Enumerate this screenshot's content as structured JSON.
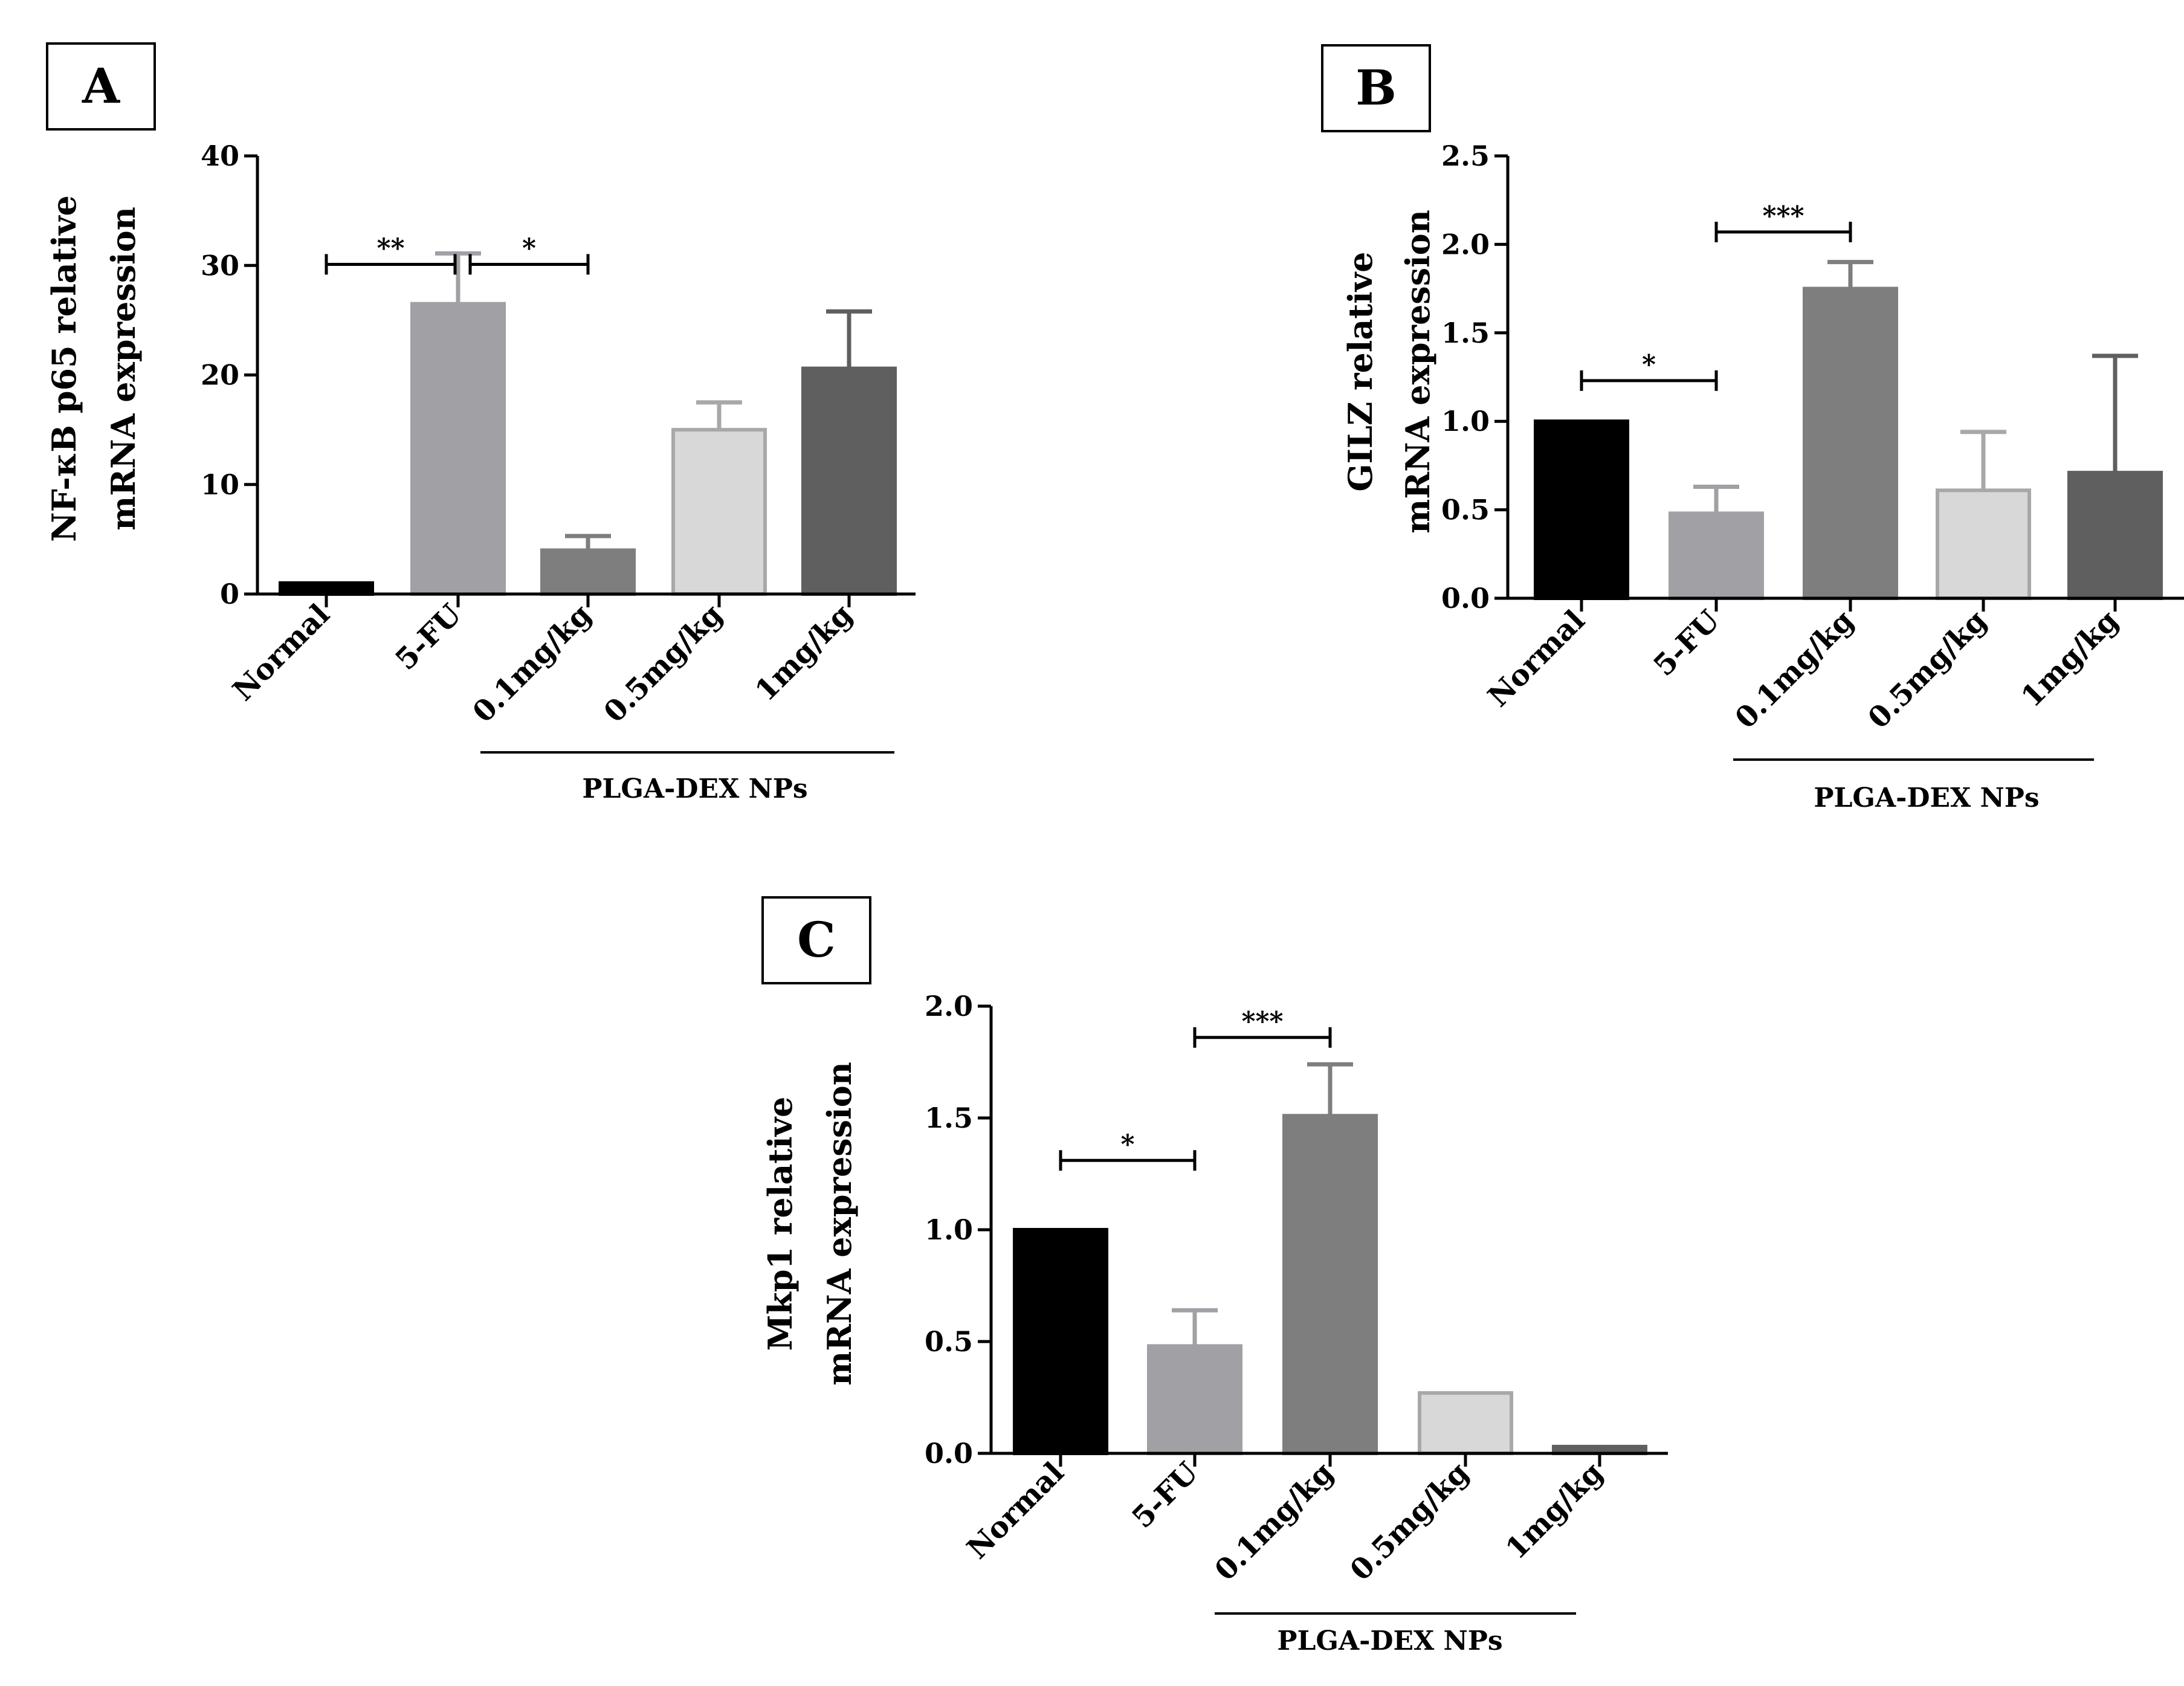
{
  "chart_data": [
    {
      "panel": "A",
      "type": "bar",
      "title": "",
      "ylabel_line1": "NF-κB p65 relative",
      "ylabel_line2": "mRNA expression",
      "xlabel": "",
      "categories": [
        "Normal",
        "5-FU",
        "0.1mg/kg",
        "0.5mg/kg",
        "1mg/kg"
      ],
      "values": [
        1,
        26.5,
        4,
        15,
        20.6
      ],
      "errors": [
        0,
        4.6,
        1.3,
        2.5,
        5.2
      ],
      "ylim": [
        0,
        40
      ],
      "yticks": [
        0,
        10,
        20,
        30,
        40
      ],
      "ytick_labels": [
        "0",
        "10",
        "20",
        "30",
        "40"
      ],
      "group_label": "PLGA-DEX NPs",
      "group_range": [
        2,
        4
      ],
      "significance": [
        {
          "from": 0,
          "to": 1,
          "label": "**",
          "y": 30.1
        },
        {
          "from": 1,
          "to": 2,
          "label": "*",
          "y": 30.1
        }
      ]
    },
    {
      "panel": "B",
      "type": "bar",
      "title": "",
      "ylabel_line1": "GILZ relative",
      "ylabel_line2": "mRNA expression",
      "xlabel": "",
      "categories": [
        "Normal",
        "5-FU",
        "0.1mg/kg",
        "0.5mg/kg",
        "1mg/kg"
      ],
      "values": [
        1.0,
        0.48,
        1.75,
        0.61,
        0.71
      ],
      "errors": [
        0,
        0.15,
        0.15,
        0.33,
        0.66
      ],
      "ylim": [
        0,
        2.5
      ],
      "yticks": [
        0,
        0.5,
        1.0,
        1.5,
        2.0,
        2.5
      ],
      "ytick_labels": [
        "0.0",
        "0.5",
        "1.0",
        "1.5",
        "2.0",
        "2.5"
      ],
      "group_label": "PLGA-DEX NPs",
      "group_range": [
        2,
        4
      ],
      "significance": [
        {
          "from": 0,
          "to": 1,
          "label": "*",
          "y": 1.23
        },
        {
          "from": 1,
          "to": 2,
          "label": "***",
          "y": 2.07
        }
      ]
    },
    {
      "panel": "C",
      "type": "bar",
      "title": "",
      "ylabel_line1": "Mkp1 relative",
      "ylabel_line2": "mRNA expression",
      "xlabel": "",
      "categories": [
        "Normal",
        "5-FU",
        "0.1mg/kg",
        "0.5mg/kg",
        "1mg/kg"
      ],
      "values": [
        1.0,
        0.48,
        1.51,
        0.27,
        0.03
      ],
      "errors": [
        0,
        0.16,
        0.23,
        0,
        0
      ],
      "ylim": [
        0,
        2.0
      ],
      "yticks": [
        0,
        0.5,
        1.0,
        1.5,
        2.0
      ],
      "ytick_labels": [
        "0.0",
        "0.5",
        "1.0",
        "1.5",
        "2.0"
      ],
      "group_label": "PLGA-DEX NPs",
      "group_range": [
        2,
        4
      ],
      "significance": [
        {
          "from": 0,
          "to": 1,
          "label": "*",
          "y": 1.31
        },
        {
          "from": 1,
          "to": 2,
          "label": "***",
          "y": 1.86
        }
      ]
    }
  ],
  "colors": {
    "bars": [
      "#000000",
      "#a0a0a5",
      "#7e7e7e",
      "#d8d8d8",
      "#5f5f5f"
    ],
    "bar_strokes": [
      "#000000",
      "#a0a0a5",
      "#7e7e7e",
      "#a8a8a8",
      "#5f5f5f"
    ],
    "errors": [
      "#000000",
      "#a0a0a5",
      "#7e7e7e",
      "#a8a8a8",
      "#5f5f5f"
    ],
    "axis": "#000000"
  }
}
